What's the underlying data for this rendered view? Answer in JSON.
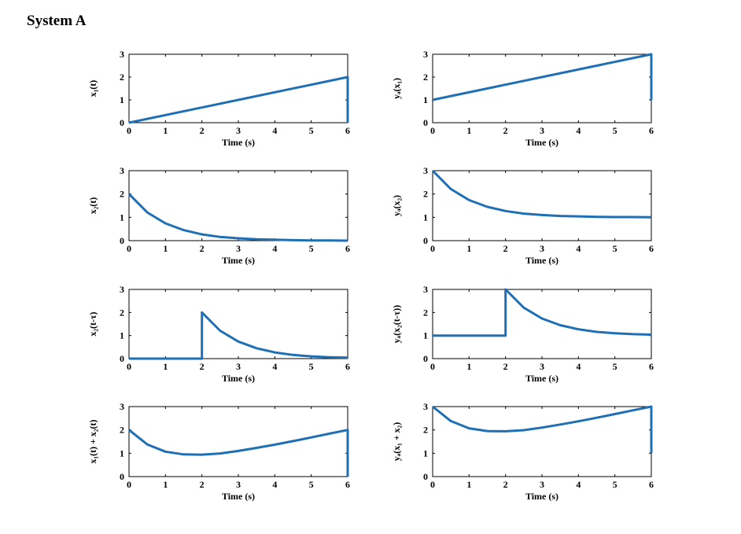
{
  "page_title": "System A",
  "style": {
    "line_color": "#1f6fb5",
    "axis_color": "#000000"
  },
  "chart_data": [
    {
      "id": "x1",
      "type": "line",
      "ylabel": "x₁(t)",
      "xlabel": "Time (s)",
      "xlim": [
        0,
        6
      ],
      "ylim": [
        0,
        3
      ],
      "xticks": [
        0,
        1,
        2,
        3,
        4,
        5,
        6
      ],
      "yticks": [
        0,
        1,
        2,
        3
      ],
      "x": [
        0,
        6,
        6
      ],
      "y": [
        0,
        2,
        0
      ]
    },
    {
      "id": "yA_x1",
      "type": "line",
      "ylabel": "yₐ(x₁)",
      "xlabel": "Time (s)",
      "xlim": [
        0,
        6
      ],
      "ylim": [
        0,
        3
      ],
      "xticks": [
        0,
        1,
        2,
        3,
        4,
        5,
        6
      ],
      "yticks": [
        0,
        1,
        2,
        3
      ],
      "x": [
        0,
        6,
        6
      ],
      "y": [
        1,
        3,
        1
      ]
    },
    {
      "id": "x2",
      "type": "line",
      "ylabel": "x₂(t)",
      "xlabel": "Time (s)",
      "xlim": [
        0,
        6
      ],
      "ylim": [
        0,
        3
      ],
      "xticks": [
        0,
        1,
        2,
        3,
        4,
        5,
        6
      ],
      "yticks": [
        0,
        1,
        2,
        3
      ],
      "x": [
        0,
        0.5,
        1,
        1.5,
        2,
        2.5,
        3,
        3.5,
        4,
        4.5,
        5,
        5.5,
        6
      ],
      "y": [
        2,
        1.21,
        0.74,
        0.45,
        0.27,
        0.16,
        0.1,
        0.06,
        0.04,
        0.02,
        0.01,
        0.01,
        0
      ]
    },
    {
      "id": "yA_x2",
      "type": "line",
      "ylabel": "yₐ(x₂)",
      "xlabel": "Time (s)",
      "xlim": [
        0,
        6
      ],
      "ylim": [
        0,
        3
      ],
      "xticks": [
        0,
        1,
        2,
        3,
        4,
        5,
        6
      ],
      "yticks": [
        0,
        1,
        2,
        3
      ],
      "x": [
        0,
        0.5,
        1,
        1.5,
        2,
        2.5,
        3,
        3.5,
        4,
        4.5,
        5,
        5.5,
        6
      ],
      "y": [
        3,
        2.21,
        1.74,
        1.45,
        1.27,
        1.16,
        1.1,
        1.06,
        1.04,
        1.02,
        1.01,
        1.01,
        1
      ]
    },
    {
      "id": "x2_shift",
      "type": "line",
      "ylabel": "x₂(t-τ)",
      "xlabel": "Time (s)",
      "xlim": [
        0,
        6
      ],
      "ylim": [
        0,
        3
      ],
      "xticks": [
        0,
        1,
        2,
        3,
        4,
        5,
        6
      ],
      "yticks": [
        0,
        1,
        2,
        3
      ],
      "x": [
        0,
        2,
        2,
        2.5,
        3,
        3.5,
        4,
        4.5,
        5,
        5.5,
        6
      ],
      "y": [
        0,
        0,
        2,
        1.21,
        0.74,
        0.45,
        0.27,
        0.16,
        0.1,
        0.06,
        0.04
      ]
    },
    {
      "id": "yA_x2_shift",
      "type": "line",
      "ylabel": "yₐ(x₂(t-τ))",
      "xlabel": "Time (s)",
      "xlim": [
        0,
        6
      ],
      "ylim": [
        0,
        3
      ],
      "xticks": [
        0,
        1,
        2,
        3,
        4,
        5,
        6
      ],
      "yticks": [
        0,
        1,
        2,
        3
      ],
      "x": [
        0,
        2,
        2,
        2.5,
        3,
        3.5,
        4,
        4.5,
        5,
        5.5,
        6
      ],
      "y": [
        1,
        1,
        3,
        2.21,
        1.74,
        1.45,
        1.27,
        1.16,
        1.1,
        1.06,
        1.04
      ]
    },
    {
      "id": "x1_plus_x2",
      "type": "line",
      "ylabel": "x₁(t) + x₂(t)",
      "xlabel": "Time (s)",
      "xlim": [
        0,
        6
      ],
      "ylim": [
        0,
        3
      ],
      "xticks": [
        0,
        1,
        2,
        3,
        4,
        5,
        6
      ],
      "yticks": [
        0,
        1,
        2,
        3
      ],
      "x": [
        0,
        0.5,
        1,
        1.5,
        2,
        2.5,
        3,
        3.5,
        4,
        4.5,
        5,
        5.5,
        6,
        6
      ],
      "y": [
        2,
        1.38,
        1.07,
        0.95,
        0.94,
        0.99,
        1.1,
        1.23,
        1.37,
        1.52,
        1.68,
        1.84,
        2,
        0
      ]
    },
    {
      "id": "yA_x1_plus_x2",
      "type": "line",
      "ylabel": "yₐ(x₁ + x₂)",
      "xlabel": "Time (s)",
      "xlim": [
        0,
        6
      ],
      "ylim": [
        0,
        3
      ],
      "xticks": [
        0,
        1,
        2,
        3,
        4,
        5,
        6
      ],
      "yticks": [
        0,
        1,
        2,
        3
      ],
      "x": [
        0,
        0.5,
        1,
        1.5,
        2,
        2.5,
        3,
        3.5,
        4,
        4.5,
        5,
        5.5,
        6,
        6
      ],
      "y": [
        3,
        2.38,
        2.07,
        1.95,
        1.94,
        1.99,
        2.1,
        2.23,
        2.37,
        2.52,
        2.68,
        2.84,
        3,
        1
      ]
    }
  ]
}
